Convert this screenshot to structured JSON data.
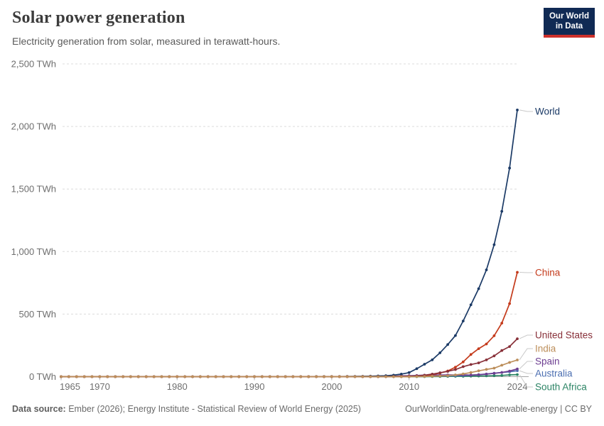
{
  "branding": {
    "logo_line1": "Our World",
    "logo_line2": "in Data",
    "logo_bg": "#102a54",
    "logo_stripe": "#cd302b"
  },
  "footer": {
    "source_label": "Data source:",
    "source_text": " Ember (2026); Energy Institute - Statistical Review of World Energy (2025)",
    "link_text": "OurWorldinData.org/renewable-energy | CC BY"
  },
  "chart_data": {
    "type": "line",
    "title": "Solar power generation",
    "subtitle": "Electricity generation from solar, measured in terawatt-hours.",
    "unit": "TWh",
    "xlabel": "",
    "ylabel": "",
    "grid": "horizontal-dashed",
    "legend_position": "right-inline-labels",
    "marker": "circle",
    "x_domain": [
      1965,
      2024
    ],
    "y_domain": [
      0,
      2500
    ],
    "x_ticks": [
      {
        "year": 1965,
        "label": "1965"
      },
      {
        "year": 1970,
        "label": "1970"
      },
      {
        "year": 1980,
        "label": "1980"
      },
      {
        "year": 1990,
        "label": "1990"
      },
      {
        "year": 2000,
        "label": "2000"
      },
      {
        "year": 2010,
        "label": "2010"
      },
      {
        "year": 2024,
        "label": "2024"
      }
    ],
    "y_ticks": [
      {
        "value": 0,
        "label": "0 TWh"
      },
      {
        "value": 500,
        "label": "500 TWh"
      },
      {
        "value": 1000,
        "label": "1,000 TWh"
      },
      {
        "value": 1500,
        "label": "1,500 TWh"
      },
      {
        "value": 2000,
        "label": "2,000 TWh"
      },
      {
        "value": 2500,
        "label": "2,500 TWh"
      }
    ],
    "series": [
      {
        "name": "World",
        "color": "#1b3a66",
        "label_y": 157,
        "z": 4,
        "values": [
          0,
          0,
          0,
          0,
          0,
          0,
          0,
          0,
          0,
          0,
          0,
          0,
          0,
          0,
          0,
          0,
          0,
          0,
          0,
          0,
          0,
          0,
          0,
          0,
          0,
          0.4,
          0.5,
          0.5,
          0.6,
          0.6,
          0.7,
          0.7,
          0.8,
          0.9,
          1.0,
          1.1,
          1.4,
          1.7,
          2.1,
          2.8,
          4.0,
          5.4,
          7.4,
          12.1,
          20.6,
          32.2,
          63.6,
          99.5,
          134.5,
          190.9,
          256.8,
          328.7,
          445.2,
          574.2,
          702.9,
          853.7,
          1055.3,
          1321.9,
          1667.7,
          2131.7
        ]
      },
      {
        "name": "China",
        "color": "#c43b1c",
        "label_y": 384,
        "z": 5,
        "values": [
          0,
          0,
          0,
          0,
          0,
          0,
          0,
          0,
          0,
          0,
          0,
          0,
          0,
          0,
          0,
          0,
          0,
          0,
          0,
          0,
          0,
          0,
          0,
          0,
          0,
          0,
          0,
          0,
          0,
          0,
          0,
          0,
          0,
          0,
          0,
          0,
          0,
          0,
          0,
          0,
          0,
          0,
          0,
          0,
          0,
          0.7,
          2.6,
          6.3,
          15.5,
          29.2,
          45.2,
          75.3,
          117.8,
          176.9,
          223.8,
          261.1,
          327.0,
          427.8,
          584.2,
          834.1
        ]
      },
      {
        "name": "United States",
        "color": "#883039",
        "label_y": 472,
        "z": 6,
        "values": [
          0,
          0,
          0,
          0,
          0,
          0,
          0,
          0,
          0,
          0,
          0,
          0,
          0,
          0,
          0,
          0,
          0,
          0,
          0,
          0,
          0,
          0,
          0,
          0,
          0,
          0,
          0,
          0,
          0,
          0,
          0,
          0,
          0,
          0,
          0,
          0.5,
          0.5,
          0.6,
          0.6,
          0.7,
          0.6,
          0.5,
          0.6,
          2.1,
          2.8,
          3.9,
          6.2,
          11.3,
          20.2,
          31.3,
          42.1,
          56.9,
          80.2,
          97.1,
          110.1,
          134.1,
          166.0,
          209.1,
          240.4,
          303.2
        ]
      },
      {
        "name": "India",
        "color": "#bc8e5a",
        "label_y": 491,
        "z": 7,
        "values": [
          0,
          0,
          0,
          0,
          0,
          0,
          0,
          0,
          0,
          0,
          0,
          0,
          0,
          0,
          0,
          0,
          0,
          0,
          0,
          0,
          0,
          0,
          0,
          0,
          0,
          0,
          0,
          0,
          0,
          0,
          0,
          0,
          0,
          0,
          0,
          0,
          0,
          0,
          0,
          0,
          0,
          0,
          0,
          0,
          0,
          0.1,
          0.5,
          1.2,
          3.4,
          5.4,
          8.2,
          13.5,
          22.4,
          33.1,
          46.3,
          57.9,
          68.3,
          91.4,
          113.4,
          133.2
        ]
      },
      {
        "name": "Spain",
        "color": "#6d3e91",
        "label_y": 509,
        "z": 3,
        "values": [
          0,
          0,
          0,
          0,
          0,
          0,
          0,
          0,
          0,
          0,
          0,
          0,
          0,
          0,
          0,
          0,
          0,
          0,
          0,
          0,
          0,
          0,
          0,
          0,
          0,
          0,
          0,
          0,
          0,
          0,
          0,
          0,
          0,
          0,
          0,
          0,
          0,
          0,
          0,
          0.1,
          0.1,
          0.1,
          0.5,
          2.6,
          6.1,
          7.2,
          8.8,
          11.9,
          12.8,
          13.0,
          13.9,
          13.6,
          14.2,
          12.7,
          15.1,
          20.7,
          26.8,
          33.3,
          45.1,
          62.0
        ]
      },
      {
        "name": "Australia",
        "color": "#4c6fb1",
        "label_y": 526,
        "z": 2,
        "values": [
          0,
          0,
          0,
          0,
          0,
          0,
          0,
          0,
          0,
          0,
          0,
          0,
          0,
          0,
          0,
          0,
          0,
          0,
          0,
          0,
          0,
          0,
          0,
          0,
          0,
          0,
          0,
          0,
          0,
          0,
          0,
          0,
          0,
          0,
          0,
          0,
          0,
          0,
          0,
          0,
          0,
          0,
          0,
          0.4,
          0.9,
          1.5,
          2.6,
          3.8,
          4.9,
          5.5,
          6.2,
          7.2,
          8.9,
          11.7,
          16.4,
          21.0,
          27.8,
          33.5,
          39.0,
          47.8
        ]
      },
      {
        "name": "South Africa",
        "color": "#2c8465",
        "label_y": 545,
        "z": 1,
        "values": [
          0,
          0,
          0,
          0,
          0,
          0,
          0,
          0,
          0,
          0,
          0,
          0,
          0,
          0,
          0,
          0,
          0,
          0,
          0,
          0,
          0,
          0,
          0,
          0,
          0,
          0,
          0,
          0,
          0,
          0,
          0,
          0,
          0,
          0,
          0,
          0,
          0,
          0,
          0,
          0,
          0,
          0,
          0,
          0,
          0,
          0,
          0,
          0,
          0.4,
          1.1,
          2.2,
          2.6,
          3.1,
          3.8,
          4.9,
          6.3,
          7.3,
          9.5,
          14.2,
          16.5
        ]
      }
    ]
  }
}
